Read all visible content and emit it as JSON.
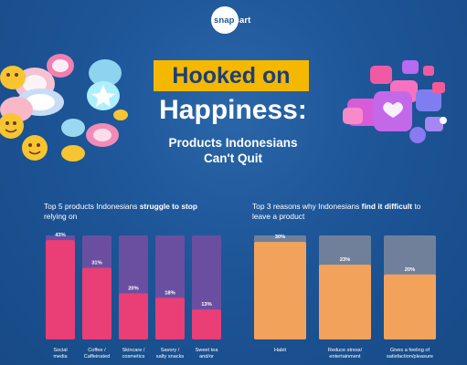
{
  "brand": {
    "part1": "snap",
    "part2": "cart"
  },
  "title_line1": "Hooked on",
  "title_line2": "Happiness:",
  "subtitle_line1": "Products Indonesians",
  "subtitle_line2": "Can't Quit",
  "colors": {
    "background": "#1d5597",
    "accent_yellow": "#f5b800",
    "left_bar": "#ea3e76",
    "left_bar_track": "#6a4fa0",
    "right_bar": "#f3a25c",
    "right_bar_track": "#70809a"
  },
  "chart_data": [
    {
      "type": "bar",
      "title_prefix": "Top 5 products Indonesians ",
      "title_bold": "struggle to stop",
      "title_line2": "relying on",
      "categories": [
        [
          "Social",
          "media"
        ],
        [
          "Coffee /",
          "Caffeinated"
        ],
        [
          "Skincare /",
          "cosmetics"
        ],
        [
          "Savory /",
          "salty snacks"
        ],
        [
          "Sweet tea",
          "and/or"
        ]
      ],
      "values": [
        43,
        31,
        20,
        18,
        13
      ],
      "value_labels": [
        "43%",
        "31%",
        "20%",
        "18%",
        "13%"
      ],
      "ylim": [
        0,
        45
      ]
    },
    {
      "type": "bar",
      "title_prefix": "Top 3 reasons why Indonesians ",
      "title_bold": "find it difficult",
      "title_suffix": " to",
      "title_line2": "leave a product",
      "categories": [
        [
          "Habit"
        ],
        [
          "Reduce stress/",
          "entertainment"
        ],
        [
          "Gives a feeling of",
          "satisfaction/pleasure"
        ]
      ],
      "values": [
        30,
        23,
        20
      ],
      "value_labels": [
        "30%",
        "23%",
        "20%"
      ],
      "ylim": [
        0,
        32
      ]
    }
  ]
}
